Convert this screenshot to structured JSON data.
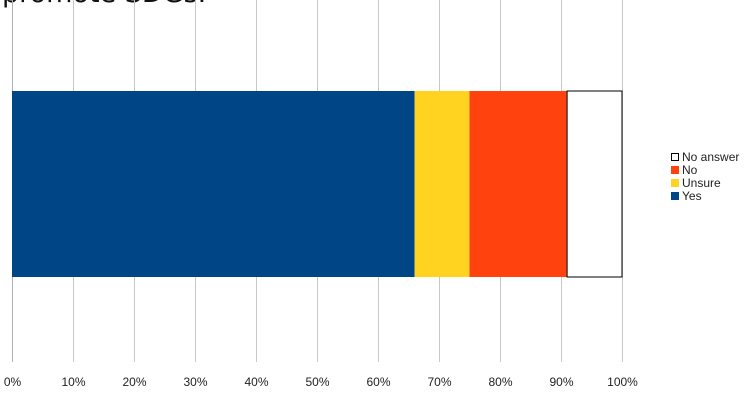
{
  "chart_data": {
    "type": "bar",
    "orientation": "horizontal",
    "stacked": true,
    "title": "promote SDGs.",
    "xlabel": "",
    "ylabel": "",
    "xlim": [
      0,
      100
    ],
    "x_ticks": [
      "0%",
      "10%",
      "20%",
      "30%",
      "40%",
      "50%",
      "60%",
      "70%",
      "80%",
      "90%",
      "100%"
    ],
    "grid": "vertical",
    "legend_position": "right",
    "categories": [
      ""
    ],
    "series": [
      {
        "name": "Yes",
        "values": [
          66
        ],
        "color": "#004586"
      },
      {
        "name": "Unsure",
        "values": [
          9
        ],
        "color": "#ffd320"
      },
      {
        "name": "No",
        "values": [
          16
        ],
        "color": "#ff420e"
      },
      {
        "name": "No answer",
        "values": [
          9
        ],
        "color": "#ffffff"
      }
    ],
    "legend": [
      {
        "label": "No answer",
        "color": "#ffffff"
      },
      {
        "label": "No",
        "color": "#ff420e"
      },
      {
        "label": "Unsure",
        "color": "#ffd320"
      },
      {
        "label": "Yes",
        "color": "#004586"
      }
    ]
  }
}
